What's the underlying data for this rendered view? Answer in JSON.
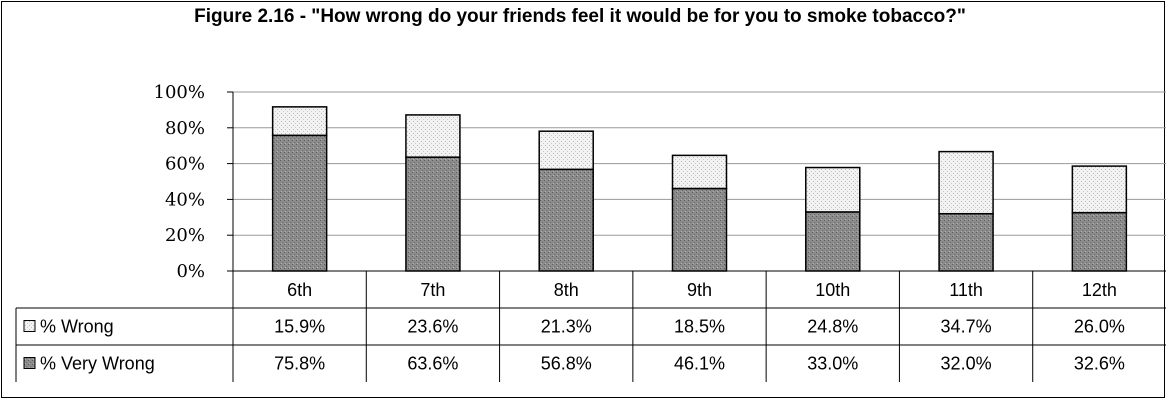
{
  "chart_data": {
    "type": "bar",
    "stacked": true,
    "title": "Figure 2.16 - \"How wrong do your friends feel it would be for you to smoke tobacco?\"",
    "categories": [
      "6th",
      "7th",
      "8th",
      "9th",
      "10th",
      "11th",
      "12th"
    ],
    "series": [
      {
        "name": "% Very Wrong",
        "values": [
          75.8,
          63.6,
          56.8,
          46.1,
          33.0,
          32.0,
          32.6
        ],
        "labels": [
          "75.8%",
          "63.6%",
          "56.8%",
          "46.1%",
          "33.0%",
          "32.0%",
          "32.6%"
        ]
      },
      {
        "name": "% Wrong",
        "values": [
          15.9,
          23.6,
          21.3,
          18.5,
          24.8,
          34.7,
          26.0
        ],
        "labels": [
          "15.9%",
          "23.6%",
          "21.3%",
          "18.5%",
          "24.8%",
          "34.7%",
          "26.0%"
        ]
      }
    ],
    "table_rows": [
      "% Wrong",
      "% Very Wrong"
    ],
    "yticks": [
      "0%",
      "20%",
      "40%",
      "60%",
      "80%",
      "100%"
    ],
    "ylim": [
      0,
      100
    ],
    "grid": true,
    "legend": "data-table"
  },
  "colors": {
    "very_wrong": "#8f8f8f",
    "wrong": "#ececec",
    "border": "#000000",
    "grid": "#9a9a9a"
  }
}
